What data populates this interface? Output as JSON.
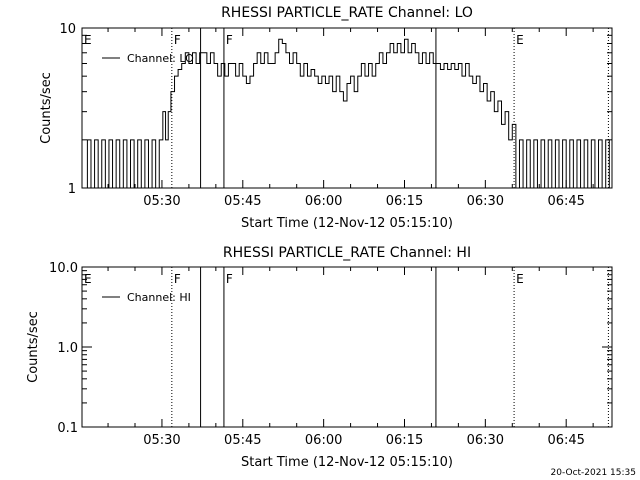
{
  "footer_date": "20-Oct-2021 15:35",
  "chart_data": [
    {
      "type": "line",
      "title": "RHESSI PARTICLE_RATE Channel: LO",
      "xlabel": "Start Time (12-Nov-12 05:15:10)",
      "ylabel": "Counts/sec",
      "yscale": "log",
      "ylim": [
        1,
        10
      ],
      "y_ticks": [
        "1",
        "10"
      ],
      "xlim": [
        0,
        5900
      ],
      "x_ticks": [
        {
          "label": "05:30",
          "value": 890
        },
        {
          "label": "05:45",
          "value": 1790
        },
        {
          "label": "06:00",
          "value": 2690
        },
        {
          "label": "06:15",
          "value": 3590
        },
        {
          "label": "06:30",
          "value": 4490
        },
        {
          "label": "06:45",
          "value": 5390
        }
      ],
      "legend": {
        "label": "Channel: LO",
        "position": "top-left"
      },
      "markers": [
        {
          "label": "E",
          "value": 0,
          "style": "dotted"
        },
        {
          "label": "F",
          "value": 1000,
          "style": "dotted"
        },
        {
          "label": "F",
          "value": 1580,
          "style": "solid"
        },
        {
          "label": "",
          "value": 1320,
          "style": "solid"
        },
        {
          "label": "",
          "value": 3940,
          "style": "solid"
        },
        {
          "label": "E",
          "value": 4810,
          "style": "dotted"
        },
        {
          "label": "",
          "value": 5860,
          "style": "dotted"
        }
      ],
      "series": [
        {
          "values": [
            {
              "x": 0,
              "y": 1.0
            },
            {
              "x": 60,
              "y": 2.0
            },
            {
              "x": 100,
              "y": 1.0
            },
            {
              "x": 140,
              "y": 2.0
            },
            {
              "x": 180,
              "y": 1.0
            },
            {
              "x": 220,
              "y": 2.0
            },
            {
              "x": 260,
              "y": 1.0
            },
            {
              "x": 300,
              "y": 2.0
            },
            {
              "x": 340,
              "y": 1.0
            },
            {
              "x": 380,
              "y": 2.0
            },
            {
              "x": 420,
              "y": 1.0
            },
            {
              "x": 460,
              "y": 2.0
            },
            {
              "x": 500,
              "y": 1.0
            },
            {
              "x": 540,
              "y": 2.0
            },
            {
              "x": 580,
              "y": 1.0
            },
            {
              "x": 620,
              "y": 2.0
            },
            {
              "x": 660,
              "y": 1.0
            },
            {
              "x": 700,
              "y": 2.0
            },
            {
              "x": 740,
              "y": 1.0
            },
            {
              "x": 780,
              "y": 2.0
            },
            {
              "x": 820,
              "y": 1.0
            },
            {
              "x": 860,
              "y": 2.0
            },
            {
              "x": 900,
              "y": 3.0
            },
            {
              "x": 930,
              "y": 2.0
            },
            {
              "x": 960,
              "y": 3.0
            },
            {
              "x": 990,
              "y": 4.0
            },
            {
              "x": 1030,
              "y": 5.0
            },
            {
              "x": 1070,
              "y": 5.5
            },
            {
              "x": 1110,
              "y": 6.0
            },
            {
              "x": 1150,
              "y": 7.0
            },
            {
              "x": 1190,
              "y": 6.0
            },
            {
              "x": 1230,
              "y": 7.0
            },
            {
              "x": 1270,
              "y": 6.0
            },
            {
              "x": 1310,
              "y": 7.0
            },
            {
              "x": 1350,
              "y": 7.0
            },
            {
              "x": 1390,
              "y": 6.0
            },
            {
              "x": 1430,
              "y": 7.0
            },
            {
              "x": 1470,
              "y": 6.0
            },
            {
              "x": 1510,
              "y": 5.0
            },
            {
              "x": 1550,
              "y": 6.0
            },
            {
              "x": 1590,
              "y": 5.0
            },
            {
              "x": 1630,
              "y": 6.0
            },
            {
              "x": 1670,
              "y": 6.0
            },
            {
              "x": 1710,
              "y": 5.0
            },
            {
              "x": 1750,
              "y": 6.0
            },
            {
              "x": 1790,
              "y": 5.0
            },
            {
              "x": 1830,
              "y": 4.5
            },
            {
              "x": 1870,
              "y": 5.0
            },
            {
              "x": 1910,
              "y": 6.0
            },
            {
              "x": 1950,
              "y": 7.0
            },
            {
              "x": 1990,
              "y": 6.0
            },
            {
              "x": 2030,
              "y": 7.0
            },
            {
              "x": 2070,
              "y": 6.0
            },
            {
              "x": 2110,
              "y": 6.0
            },
            {
              "x": 2150,
              "y": 7.0
            },
            {
              "x": 2190,
              "y": 8.5
            },
            {
              "x": 2230,
              "y": 8.0
            },
            {
              "x": 2270,
              "y": 7.0
            },
            {
              "x": 2310,
              "y": 6.0
            },
            {
              "x": 2350,
              "y": 7.0
            },
            {
              "x": 2390,
              "y": 6.0
            },
            {
              "x": 2430,
              "y": 5.0
            },
            {
              "x": 2470,
              "y": 6.0
            },
            {
              "x": 2510,
              "y": 5.0
            },
            {
              "x": 2550,
              "y": 5.5
            },
            {
              "x": 2590,
              "y": 5.0
            },
            {
              "x": 2630,
              "y": 4.5
            },
            {
              "x": 2670,
              "y": 5.0
            },
            {
              "x": 2710,
              "y": 4.5
            },
            {
              "x": 2750,
              "y": 5.0
            },
            {
              "x": 2790,
              "y": 4.0
            },
            {
              "x": 2830,
              "y": 5.0
            },
            {
              "x": 2870,
              "y": 4.0
            },
            {
              "x": 2910,
              "y": 3.5
            },
            {
              "x": 2950,
              "y": 4.5
            },
            {
              "x": 2990,
              "y": 5.0
            },
            {
              "x": 3030,
              "y": 4.0
            },
            {
              "x": 3070,
              "y": 5.0
            },
            {
              "x": 3110,
              "y": 6.0
            },
            {
              "x": 3150,
              "y": 5.0
            },
            {
              "x": 3190,
              "y": 6.0
            },
            {
              "x": 3230,
              "y": 5.0
            },
            {
              "x": 3270,
              "y": 6.0
            },
            {
              "x": 3310,
              "y": 7.0
            },
            {
              "x": 3350,
              "y": 6.0
            },
            {
              "x": 3390,
              "y": 7.0
            },
            {
              "x": 3430,
              "y": 8.0
            },
            {
              "x": 3470,
              "y": 7.0
            },
            {
              "x": 3510,
              "y": 8.0
            },
            {
              "x": 3550,
              "y": 7.0
            },
            {
              "x": 3590,
              "y": 8.5
            },
            {
              "x": 3630,
              "y": 7.0
            },
            {
              "x": 3670,
              "y": 8.0
            },
            {
              "x": 3710,
              "y": 7.0
            },
            {
              "x": 3750,
              "y": 6.0
            },
            {
              "x": 3790,
              "y": 7.0
            },
            {
              "x": 3830,
              "y": 6.0
            },
            {
              "x": 3870,
              "y": 7.0
            },
            {
              "x": 3910,
              "y": 6.0
            },
            {
              "x": 3950,
              "y": 6.0
            },
            {
              "x": 3990,
              "y": 5.5
            },
            {
              "x": 4030,
              "y": 6.0
            },
            {
              "x": 4070,
              "y": 5.5
            },
            {
              "x": 4110,
              "y": 6.0
            },
            {
              "x": 4150,
              "y": 5.5
            },
            {
              "x": 4190,
              "y": 6.0
            },
            {
              "x": 4230,
              "y": 5.0
            },
            {
              "x": 4270,
              "y": 6.0
            },
            {
              "x": 4310,
              "y": 5.0
            },
            {
              "x": 4350,
              "y": 4.5
            },
            {
              "x": 4390,
              "y": 5.0
            },
            {
              "x": 4430,
              "y": 4.0
            },
            {
              "x": 4470,
              "y": 4.5
            },
            {
              "x": 4510,
              "y": 3.5
            },
            {
              "x": 4550,
              "y": 4.0
            },
            {
              "x": 4590,
              "y": 3.0
            },
            {
              "x": 4630,
              "y": 3.5
            },
            {
              "x": 4670,
              "y": 2.5
            },
            {
              "x": 4710,
              "y": 3.0
            },
            {
              "x": 4750,
              "y": 2.0
            },
            {
              "x": 4790,
              "y": 2.5
            },
            {
              "x": 4830,
              "y": 1.0
            },
            {
              "x": 4870,
              "y": 2.0
            },
            {
              "x": 4910,
              "y": 1.0
            },
            {
              "x": 4950,
              "y": 2.0
            },
            {
              "x": 4990,
              "y": 1.0
            },
            {
              "x": 5030,
              "y": 2.0
            },
            {
              "x": 5070,
              "y": 1.0
            },
            {
              "x": 5110,
              "y": 2.0
            },
            {
              "x": 5150,
              "y": 1.0
            },
            {
              "x": 5190,
              "y": 2.0
            },
            {
              "x": 5230,
              "y": 1.0
            },
            {
              "x": 5270,
              "y": 2.0
            },
            {
              "x": 5310,
              "y": 1.0
            },
            {
              "x": 5350,
              "y": 2.0
            },
            {
              "x": 5390,
              "y": 1.0
            },
            {
              "x": 5430,
              "y": 2.0
            },
            {
              "x": 5470,
              "y": 1.0
            },
            {
              "x": 5510,
              "y": 2.0
            },
            {
              "x": 5550,
              "y": 1.0
            },
            {
              "x": 5590,
              "y": 2.0
            },
            {
              "x": 5630,
              "y": 1.0
            },
            {
              "x": 5670,
              "y": 2.0
            },
            {
              "x": 5710,
              "y": 1.0
            },
            {
              "x": 5750,
              "y": 2.0
            },
            {
              "x": 5790,
              "y": 1.0
            },
            {
              "x": 5830,
              "y": 2.0
            },
            {
              "x": 5870,
              "y": 1.0
            }
          ]
        }
      ]
    },
    {
      "type": "line",
      "title": "RHESSI PARTICLE_RATE Channel: HI",
      "xlabel": "Start Time (12-Nov-12 05:15:10)",
      "ylabel": "Counts/sec",
      "yscale": "log",
      "ylim": [
        0.1,
        10
      ],
      "y_ticks": [
        "0.1",
        "1.0",
        "10.0"
      ],
      "xlim": [
        0,
        5900
      ],
      "x_ticks": [
        {
          "label": "05:30",
          "value": 890
        },
        {
          "label": "05:45",
          "value": 1790
        },
        {
          "label": "06:00",
          "value": 2690
        },
        {
          "label": "06:15",
          "value": 3590
        },
        {
          "label": "06:30",
          "value": 4490
        },
        {
          "label": "06:45",
          "value": 5390
        }
      ],
      "legend": {
        "label": "Channel: HI",
        "position": "top-left"
      },
      "markers": [
        {
          "label": "E",
          "value": 0,
          "style": "dotted"
        },
        {
          "label": "F",
          "value": 1000,
          "style": "dotted"
        },
        {
          "label": "F",
          "value": 1580,
          "style": "solid"
        },
        {
          "label": "",
          "value": 1320,
          "style": "solid"
        },
        {
          "label": "",
          "value": 3940,
          "style": "solid"
        },
        {
          "label": "E",
          "value": 4810,
          "style": "dotted"
        },
        {
          "label": "",
          "value": 5860,
          "style": "dotted"
        }
      ],
      "series": [
        {
          "values": []
        }
      ]
    }
  ]
}
